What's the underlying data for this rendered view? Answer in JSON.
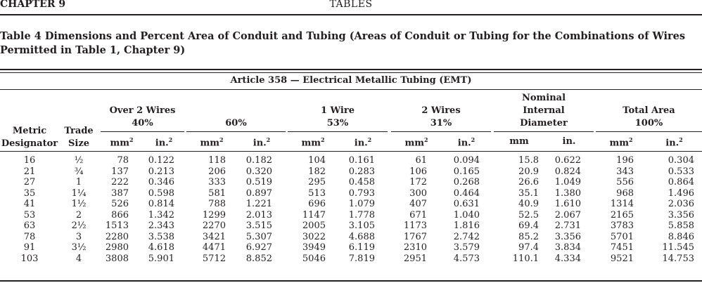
{
  "header": {
    "chapter": "CHAPTER 9",
    "section": "TABLES"
  },
  "table_title": "Table 4  Dimensions and Percent Area of Conduit and Tubing (Areas of Conduit or Tubing for the Combinations of Wires Permitted in Table 1, Chapter 9)",
  "article": "Article 358 — Electrical Metallic Tubing (EMT)",
  "col_heads": {
    "metric": [
      "Metric",
      "Designator"
    ],
    "trade": [
      "Trade",
      "Size"
    ]
  },
  "groups": [
    {
      "lines": [
        "Over 2 Wires",
        "40%"
      ]
    },
    {
      "lines": [
        "60%"
      ]
    },
    {
      "lines": [
        "1 Wire",
        "53%"
      ]
    },
    {
      "lines": [
        "2 Wires",
        "31%"
      ]
    },
    {
      "lines": [
        "Nominal",
        "Internal",
        "Diameter"
      ]
    },
    {
      "lines": [
        "Total Area",
        "100%"
      ]
    }
  ],
  "units": {
    "mm2_base": "mm",
    "in2_base": "in.",
    "sq": "2",
    "mm": "mm",
    "in": "in."
  },
  "rows": [
    [
      "16",
      "½",
      "78",
      "0.122",
      "118",
      "0.182",
      "104",
      "0.161",
      "61",
      "0.094",
      "15.8",
      "0.622",
      "196",
      "0.304"
    ],
    [
      "21",
      "¾",
      "137",
      "0.213",
      "206",
      "0.320",
      "182",
      "0.283",
      "106",
      "0.165",
      "20.9",
      "0.824",
      "343",
      "0.533"
    ],
    [
      "27",
      "1",
      "222",
      "0.346",
      "333",
      "0.519",
      "295",
      "0.458",
      "172",
      "0.268",
      "26.6",
      "1.049",
      "556",
      "0.864"
    ],
    [
      "35",
      "1¼",
      "387",
      "0.598",
      "581",
      "0.897",
      "513",
      "0.793",
      "300",
      "0.464",
      "35.1",
      "1.380",
      "968",
      "1.496"
    ],
    [
      "41",
      "1½",
      "526",
      "0.814",
      "788",
      "1.221",
      "696",
      "1.079",
      "407",
      "0.631",
      "40.9",
      "1.610",
      "1314",
      "2.036"
    ],
    [
      "53",
      "2",
      "866",
      "1.342",
      "1299",
      "2.013",
      "1147",
      "1.778",
      "671",
      "1.040",
      "52.5",
      "2.067",
      "2165",
      "3.356"
    ],
    [
      "63",
      "2½",
      "1513",
      "2.343",
      "2270",
      "3.515",
      "2005",
      "3.105",
      "1173",
      "1.816",
      "69.4",
      "2.731",
      "3783",
      "5.858"
    ],
    [
      "78",
      "3",
      "2280",
      "3.538",
      "3421",
      "5.307",
      "3022",
      "4.688",
      "1767",
      "2.742",
      "85.2",
      "3.356",
      "5701",
      "8.846"
    ],
    [
      "91",
      "3½",
      "2980",
      "4.618",
      "4471",
      "6.927",
      "3949",
      "6.119",
      "2310",
      "3.579",
      "97.4",
      "3.834",
      "7451",
      "11.545"
    ],
    [
      "103",
      "4",
      "3808",
      "5.901",
      "5712",
      "8.852",
      "5046",
      "7.819",
      "2951",
      "4.573",
      "110.1",
      "4.334",
      "9521",
      "14.753"
    ]
  ]
}
